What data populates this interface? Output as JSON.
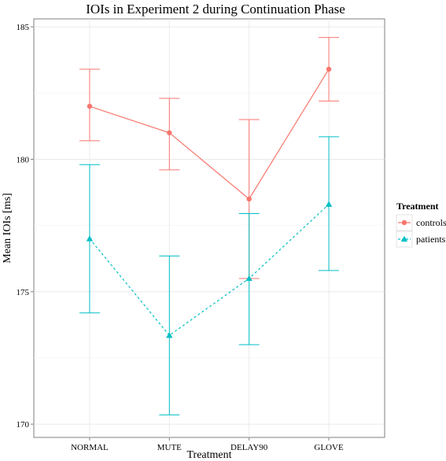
{
  "chart_data": {
    "type": "line",
    "title": "IOIs in Experiment 2 during Continuation Phase",
    "xlabel": "Treatment",
    "ylabel": "Mean IOIs [ms]",
    "categories": [
      "NORMAL",
      "MUTE",
      "DELAY90",
      "GLOVE"
    ],
    "ylim": [
      169.5,
      185.3
    ],
    "yticks": [
      170,
      175,
      180,
      185
    ],
    "grid": true,
    "legend": {
      "title": "Treatment",
      "placement": "right"
    },
    "series": [
      {
        "name": "controls",
        "color": "#F8766D",
        "marker": "circle",
        "line": "solid",
        "values": [
          182.0,
          181.0,
          178.5,
          183.4
        ],
        "err_low": [
          180.7,
          179.6,
          175.5,
          182.2
        ],
        "err_high": [
          183.4,
          182.3,
          181.5,
          184.6
        ]
      },
      {
        "name": "patients",
        "color": "#00BFC4",
        "marker": "triangle",
        "line": "dashed",
        "values": [
          177.0,
          173.35,
          175.5,
          178.3
        ],
        "err_low": [
          174.2,
          170.35,
          173.0,
          175.8
        ],
        "err_high": [
          179.8,
          176.35,
          177.95,
          180.85
        ]
      }
    ]
  }
}
